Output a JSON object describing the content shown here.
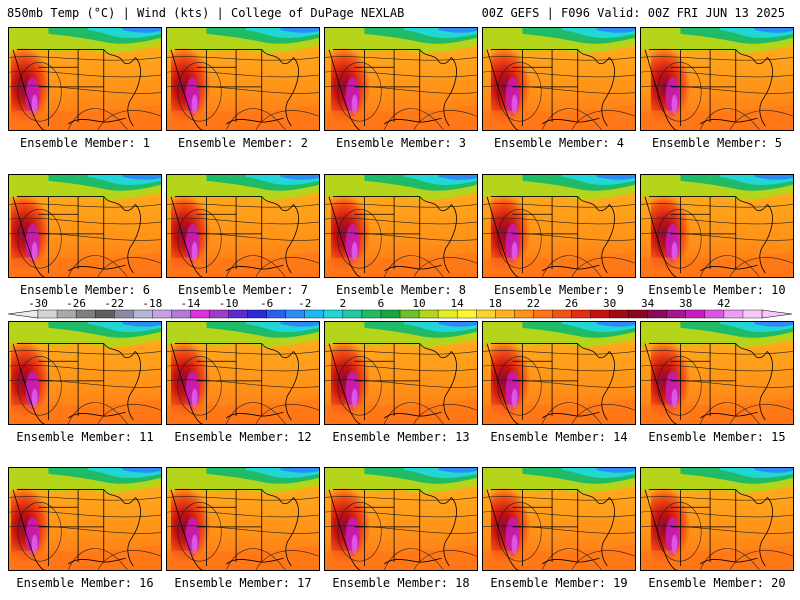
{
  "header": {
    "left": "850mb Temp (°C) | Wind (kts) | College of DuPage NEXLAB",
    "right": "00Z GEFS | F096 Valid: 00Z FRI JUN 13 2025"
  },
  "member_label_prefix": "Ensemble Member: ",
  "members": [
    1,
    2,
    3,
    4,
    5,
    6,
    7,
    8,
    9,
    10,
    11,
    12,
    13,
    14,
    15,
    16,
    17,
    18,
    19,
    20
  ],
  "legend": {
    "tick_labels": [
      "-30",
      "-26",
      "-22",
      "-18",
      "-14",
      "-10",
      "-6",
      "-2",
      "2",
      "6",
      "10",
      "14",
      "18",
      "22",
      "26",
      "30",
      "34",
      "38",
      "42"
    ],
    "colors": [
      "#d4d4d4",
      "#a9a9a9",
      "#7f7f7f",
      "#5f5f5f",
      "#8a8aa4",
      "#b4b4d6",
      "#c7a2e1",
      "#b07ad6",
      "#dd33dd",
      "#9b3dc6",
      "#5d2bd0",
      "#2a2ad9",
      "#2a5ff0",
      "#2b8cf5",
      "#1fb8f0",
      "#23d6d6",
      "#20c9a8",
      "#1fbb66",
      "#18a53f",
      "#6cc12a",
      "#b5d51b",
      "#e6ef22",
      "#fff533",
      "#ffd42a",
      "#ffb31e",
      "#ff9418",
      "#ff7418",
      "#f45316",
      "#e42d12",
      "#c8110f",
      "#a30a15",
      "#8a0621",
      "#8b0b5a",
      "#a41590",
      "#c71dc0",
      "#dc55e6",
      "#ee9cf5",
      "#f7c8fa"
    ]
  }
}
